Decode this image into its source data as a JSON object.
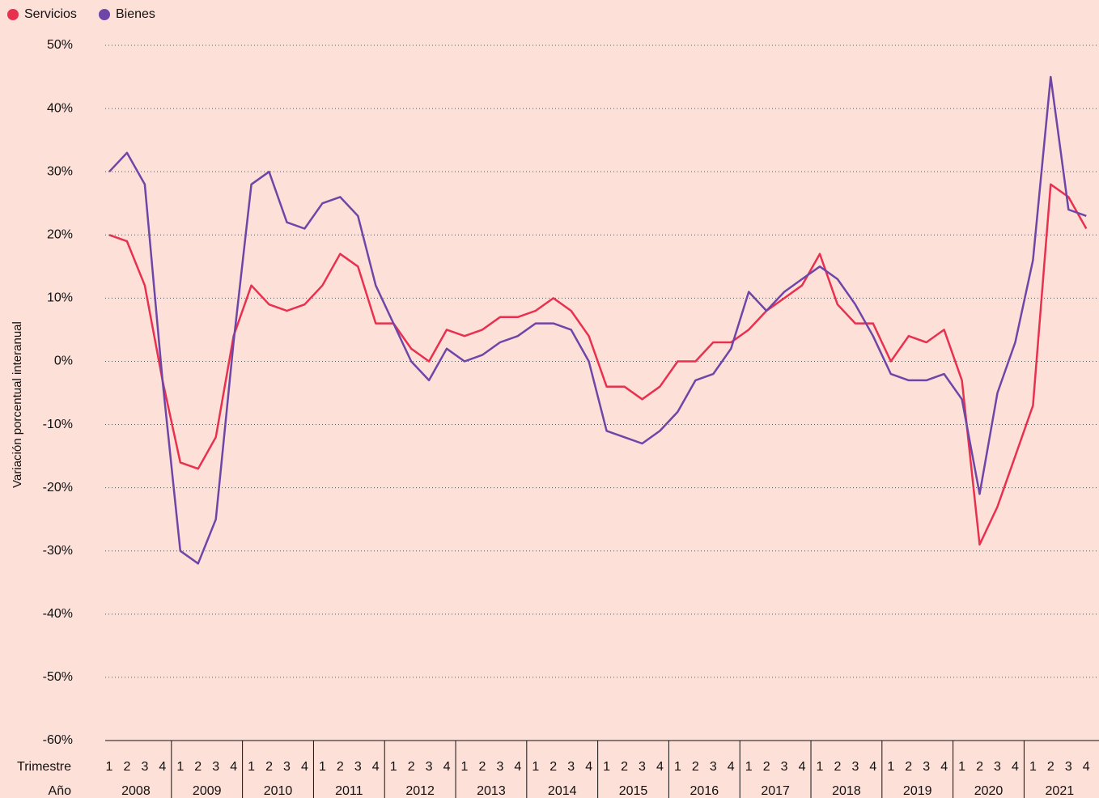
{
  "chart_data": {
    "type": "line",
    "y_label": "Variación porcentual interanual",
    "x_labels": {
      "quarter": "Trimestre",
      "year": "Año"
    },
    "categories": [
      "1",
      "2",
      "3",
      "4",
      "1",
      "2",
      "3",
      "4",
      "1",
      "2",
      "3",
      "4",
      "1",
      "2",
      "3",
      "4",
      "1",
      "2",
      "3",
      "4",
      "1",
      "2",
      "3",
      "4",
      "1",
      "2",
      "3",
      "4",
      "1",
      "2",
      "3",
      "4",
      "1",
      "2",
      "3",
      "4",
      "1",
      "2",
      "3",
      "4",
      "1",
      "2",
      "3",
      "4",
      "1",
      "2",
      "3",
      "4",
      "1",
      "2",
      "3",
      "4",
      "1",
      "2",
      "3",
      "4"
    ],
    "years": [
      "2008",
      "2009",
      "2010",
      "2011",
      "2012",
      "2013",
      "2014",
      "2015",
      "2016",
      "2017",
      "2018",
      "2019",
      "2020",
      "2021"
    ],
    "series": [
      {
        "name": "Servicios",
        "color": "#e8304f",
        "values": [
          20,
          19,
          12,
          -3,
          -16,
          -17,
          -12,
          4,
          12,
          9,
          8,
          9,
          12,
          17,
          15,
          6,
          6,
          2,
          0,
          5,
          4,
          5,
          7,
          7,
          8,
          10,
          8,
          4,
          -4,
          -4,
          -6,
          -4,
          0,
          0,
          3,
          3,
          5,
          8,
          10,
          12,
          17,
          9,
          6,
          6,
          0,
          4,
          3,
          5,
          -3,
          -29,
          -23,
          -15,
          -7,
          28,
          26,
          21
        ]
      },
      {
        "name": "Bienes",
        "color": "#6e46a8",
        "values": [
          30,
          33,
          28,
          -3,
          -30,
          -32,
          -25,
          3,
          28,
          30,
          22,
          21,
          25,
          26,
          23,
          12,
          6,
          0,
          -3,
          2,
          0,
          1,
          3,
          4,
          6,
          6,
          5,
          0,
          -11,
          -12,
          -13,
          -11,
          -8,
          -3,
          -2,
          2,
          11,
          8,
          11,
          13,
          15,
          13,
          9,
          4,
          -2,
          -3,
          -3,
          -2,
          -6,
          -21,
          -5,
          3,
          16,
          45,
          24,
          23
        ]
      }
    ],
    "ylim": [
      -60,
      50
    ],
    "yticks": [
      {
        "value": -60,
        "label": "-60%"
      },
      {
        "value": -50,
        "label": "-50%"
      },
      {
        "value": -40,
        "label": "-40%"
      },
      {
        "value": -30,
        "label": "-30%"
      },
      {
        "value": -20,
        "label": "-20%"
      },
      {
        "value": -10,
        "label": "-10%"
      },
      {
        "value": 0,
        "label": "0%"
      },
      {
        "value": 10,
        "label": "10%"
      },
      {
        "value": 20,
        "label": "20%"
      },
      {
        "value": 30,
        "label": "30%"
      },
      {
        "value": 40,
        "label": "40%"
      },
      {
        "value": 50,
        "label": "50%"
      }
    ],
    "grid": true
  }
}
